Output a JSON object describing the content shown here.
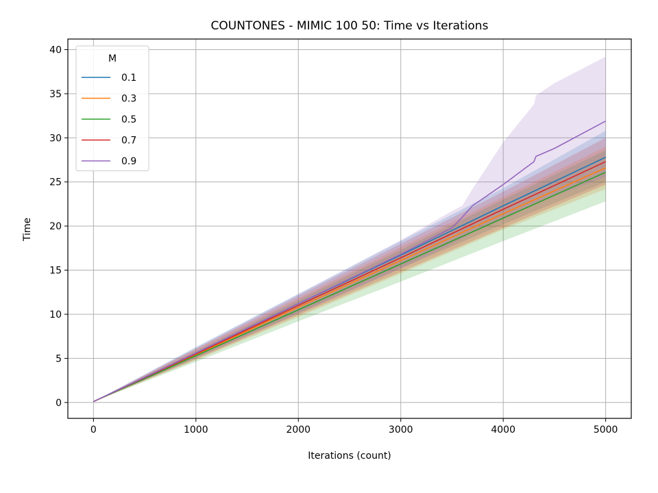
{
  "chart_data": {
    "type": "line",
    "title": "COUNTONES - MIMIC 100 50: Time vs Iterations",
    "xlabel": "Iterations (count)",
    "ylabel": "Time",
    "xlim": [
      -250,
      5250
    ],
    "ylim": [
      -1.8,
      41.2
    ],
    "xticks": [
      0,
      1000,
      2000,
      3000,
      4000,
      5000
    ],
    "yticks": [
      0,
      5,
      10,
      15,
      20,
      25,
      30,
      35,
      40
    ],
    "grid": true,
    "legend": {
      "title": "M",
      "position": "top-left"
    },
    "shaded_band": true,
    "series": [
      {
        "name": "0.1",
        "color": "#1f77b4",
        "x": [
          0,
          1000,
          2000,
          3000,
          4000,
          5000
        ],
        "y": [
          0.1,
          5.6,
          11.2,
          16.7,
          22.3,
          27.8
        ],
        "lower": [
          0.1,
          5.0,
          10.1,
          15.2,
          20.2,
          25.0
        ],
        "upper": [
          0.1,
          6.3,
          12.3,
          18.3,
          24.3,
          30.8
        ]
      },
      {
        "name": "0.3",
        "color": "#ff7f0e",
        "x": [
          0,
          1000,
          2000,
          3000,
          4000,
          5000
        ],
        "y": [
          0.1,
          5.4,
          10.8,
          16.1,
          21.4,
          26.6
        ],
        "lower": [
          0.1,
          4.8,
          9.7,
          14.6,
          19.6,
          24.2
        ],
        "upper": [
          0.1,
          6.0,
          11.8,
          17.6,
          23.3,
          29.0
        ]
      },
      {
        "name": "0.5",
        "color": "#2ca02c",
        "x": [
          0,
          1000,
          2000,
          3000,
          4000,
          5000
        ],
        "y": [
          0.1,
          5.3,
          10.5,
          15.7,
          20.9,
          26.1
        ],
        "lower": [
          0.1,
          4.6,
          9.2,
          13.7,
          18.3,
          22.8
        ],
        "upper": [
          0.1,
          5.8,
          11.6,
          17.3,
          23.0,
          28.6
        ]
      },
      {
        "name": "0.7",
        "color": "#d62728",
        "x": [
          0,
          1000,
          2000,
          3000,
          4000,
          5000
        ],
        "y": [
          0.1,
          5.5,
          11.0,
          16.4,
          21.9,
          27.3
        ],
        "lower": [
          0.1,
          4.9,
          9.9,
          14.8,
          19.8,
          24.7
        ],
        "upper": [
          0.1,
          6.1,
          12.1,
          18.0,
          23.9,
          30.0
        ]
      },
      {
        "name": "0.9",
        "color": "#9467bd",
        "x": [
          0,
          1000,
          2000,
          3000,
          3500,
          3600,
          3700,
          4000,
          4300,
          4320,
          4500,
          5000
        ],
        "y": [
          0.1,
          5.6,
          11.2,
          16.8,
          19.8,
          21.0,
          22.3,
          24.7,
          27.3,
          27.9,
          28.8,
          31.9
        ],
        "lower": [
          0.1,
          5.1,
          10.1,
          15.2,
          18.0,
          18.6,
          19.3,
          20.8,
          22.4,
          22.5,
          23.4,
          25.6
        ],
        "upper": [
          0.1,
          6.2,
          12.3,
          18.4,
          21.7,
          22.3,
          24.2,
          29.5,
          33.8,
          34.8,
          36.2,
          39.2
        ]
      }
    ]
  }
}
